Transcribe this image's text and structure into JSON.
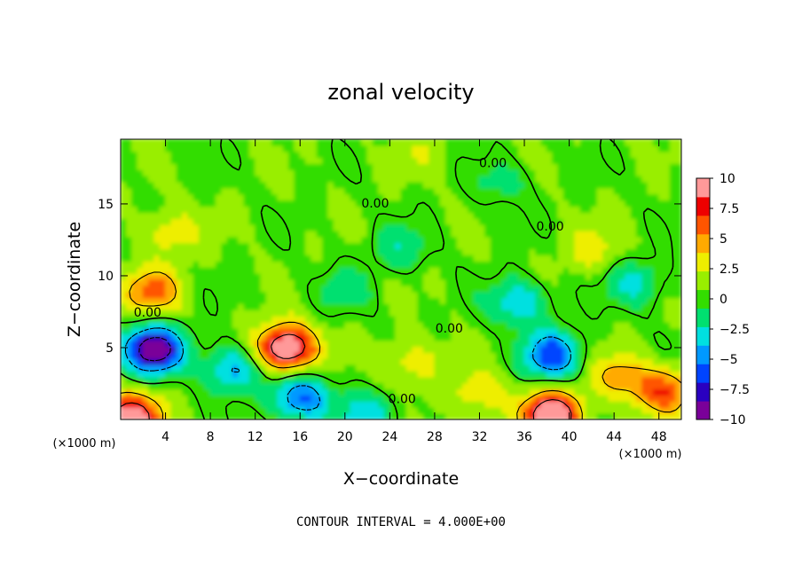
{
  "chart_data": {
    "type": "heatmap",
    "title": "zonal velocity",
    "xlabel": "X−coordinate",
    "ylabel": "Z−coordinate",
    "x_unit_left": "(×1000 m)",
    "x_unit_right": "(×1000 m)",
    "xlim": [
      0,
      50
    ],
    "ylim": [
      0,
      19.5
    ],
    "x_ticks": [
      4,
      8,
      12,
      16,
      20,
      24,
      28,
      32,
      36,
      40,
      44,
      48
    ],
    "y_ticks": [
      5,
      10,
      15
    ],
    "colorbar": {
      "range": [
        -10,
        10
      ],
      "tick_values": [
        10,
        7.5,
        5,
        2.5,
        0,
        -2.5,
        -5,
        -7.5,
        -10
      ],
      "tick_labels": [
        "10",
        "7.5",
        "5",
        "2.5",
        "0",
        "−2.5",
        "−5",
        "−7.5",
        "−10"
      ],
      "colors": [
        "#7a0099",
        "#2a00c0",
        "#0044ff",
        "#0099ff",
        "#00e0e0",
        "#00e070",
        "#33dd00",
        "#99ee00",
        "#eeee00",
        "#ffaa00",
        "#ff5500",
        "#ee0000",
        "#ff9999"
      ]
    },
    "contour_labels": [
      {
        "text": "0.00",
        "x": 2.4,
        "z": 7.4
      },
      {
        "text": "0.00",
        "x": 22.7,
        "z": 15.0
      },
      {
        "text": "0.00",
        "x": 33.2,
        "z": 17.8
      },
      {
        "text": "0.00",
        "x": 38.3,
        "z": 13.4
      },
      {
        "text": "0.00",
        "x": 29.3,
        "z": 6.3
      },
      {
        "text": "0.00",
        "x": 25.1,
        "z": 1.4
      }
    ],
    "features": [
      {
        "x": 3.0,
        "z": 4.9,
        "value": -11.0
      },
      {
        "x": 2.8,
        "z": 8.9,
        "value": 5.5
      },
      {
        "x": 4.5,
        "z": 13.0,
        "value": 3.0
      },
      {
        "x": 14.8,
        "z": 5.0,
        "value": 11.0
      },
      {
        "x": 10.0,
        "z": 3.5,
        "value": -5.0
      },
      {
        "x": 16.0,
        "z": 1.5,
        "value": -6.5
      },
      {
        "x": 38.5,
        "z": 4.5,
        "value": -7.0
      },
      {
        "x": 35.5,
        "z": 8.2,
        "value": -4.5
      },
      {
        "x": 46.0,
        "z": 9.5,
        "value": -3.5
      },
      {
        "x": 38.5,
        "z": 0.3,
        "value": 11.0
      },
      {
        "x": 1.0,
        "z": 0.2,
        "value": 10.0
      },
      {
        "x": 48.5,
        "z": 2.0,
        "value": 6.0
      },
      {
        "x": 44.5,
        "z": 3.0,
        "value": 4.0
      },
      {
        "x": 32.0,
        "z": 1.8,
        "value": 3.0
      },
      {
        "x": 26.0,
        "z": 4.0,
        "value": 3.0
      },
      {
        "x": 25.0,
        "z": 12.0,
        "value": -2.5
      },
      {
        "x": 34.0,
        "z": 16.5,
        "value": -2.0
      },
      {
        "x": 20.0,
        "z": 9.0,
        "value": -2.0
      },
      {
        "x": 27.0,
        "z": 18.6,
        "value": 1.2
      },
      {
        "x": 42.0,
        "z": 11.8,
        "value": 2.5
      },
      {
        "x": 22.0,
        "z": 0.3,
        "value": -4.0
      }
    ],
    "footer": "CONTOUR INTERVAL = 4.000E+00"
  }
}
